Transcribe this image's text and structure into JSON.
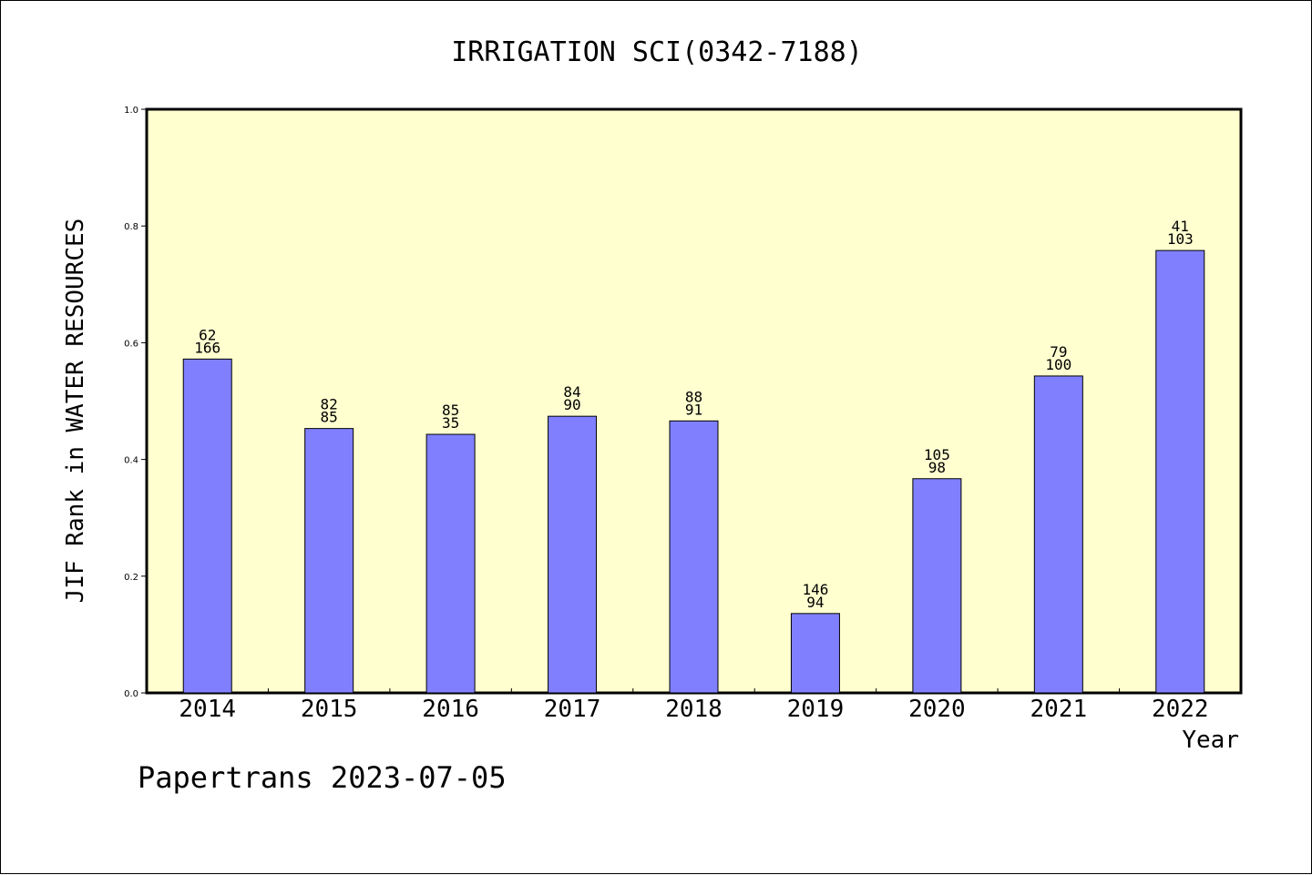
{
  "chart_data": {
    "type": "bar",
    "title": "IRRIGATION SCI(0342-7188)",
    "xlabel": "Year",
    "ylabel": "JIF Rank in WATER RESOURCES",
    "ylim": [
      0,
      1.0
    ],
    "yticks": [
      "0.0",
      "0.2",
      "0.4",
      "0.6",
      "0.8",
      "1.0"
    ],
    "categories": [
      "2014",
      "2015",
      "2016",
      "2017",
      "2018",
      "2019",
      "2020",
      "2021",
      "2022"
    ],
    "values": [
      0.572,
      0.453,
      0.443,
      0.474,
      0.466,
      0.136,
      0.367,
      0.543,
      0.758
    ],
    "rank_labels": [
      "62",
      "82",
      "85",
      "84",
      "88",
      "146",
      "105",
      "79",
      "41"
    ],
    "total_labels": [
      "166",
      "85",
      "35",
      "90",
      "91",
      "94",
      "98",
      "100",
      "103"
    ],
    "grid": false,
    "colors": {
      "bar": "#8080ff",
      "plot_background": "#ffffd0",
      "axis": "#000000"
    }
  },
  "footer": "Papertrans 2023-07-05"
}
